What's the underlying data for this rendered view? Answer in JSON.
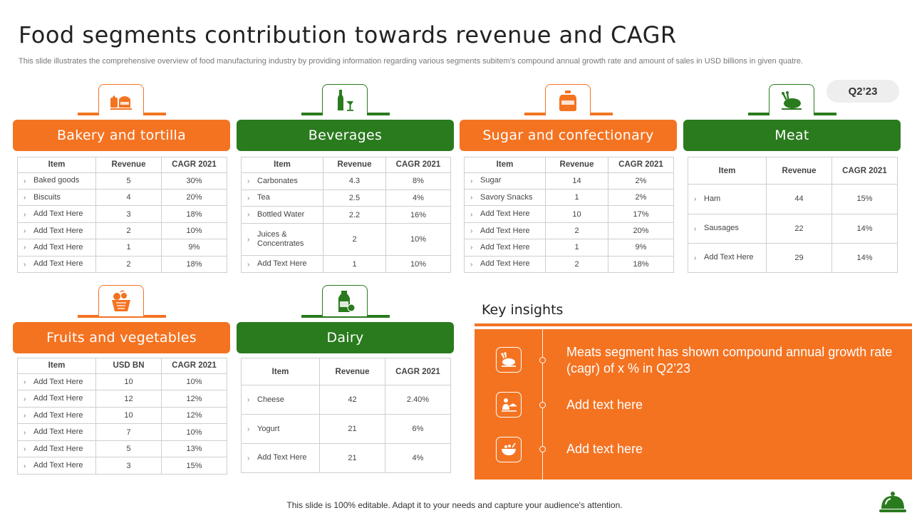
{
  "title": "Food segments contribution towards revenue and CAGR",
  "subtitle": "This slide illustrates the comprehensive overview of food manufacturing industry by providing information regarding various segments subitem’s compound annual growth rate and amount of sales in USD billions in given quatre.",
  "badge": "Q2’23",
  "segments": [
    {
      "title": "Bakery and tortilla",
      "icon": "bakery-icon",
      "theme": "orange",
      "columns": [
        "Item",
        "Revenue",
        "CAGR  2021"
      ],
      "rows": [
        [
          "Baked goods",
          "5",
          "30%"
        ],
        [
          "Biscuits",
          "4",
          "20%"
        ],
        [
          "Add Text Here",
          "3",
          "18%"
        ],
        [
          "Add Text Here",
          "2",
          "10%"
        ],
        [
          "Add Text Here",
          "1",
          "9%"
        ],
        [
          "Add Text Here",
          "2",
          "18%"
        ]
      ]
    },
    {
      "title": "Beverages",
      "icon": "beverage-bottle-icon",
      "theme": "green",
      "columns": [
        "Item",
        "Revenue",
        "CAGR  2021"
      ],
      "rows": [
        [
          "Carbonates",
          "4.3",
          "8%"
        ],
        [
          "Tea",
          "2.5",
          "4%"
        ],
        [
          "Bottled Water",
          "2.2",
          "16%"
        ],
        [
          "Juices & Concentrates",
          "2",
          "10%"
        ],
        [
          "Add Text Here",
          "1",
          "10%"
        ]
      ]
    },
    {
      "title": "Sugar and confectionary",
      "icon": "sugar-jar-icon",
      "theme": "orange",
      "columns": [
        "Item",
        "Revenue",
        "CAGR  2021"
      ],
      "rows": [
        [
          "Sugar",
          "14",
          "2%"
        ],
        [
          "Savory Snacks",
          "1",
          "2%"
        ],
        [
          "Add Text Here",
          "10",
          "17%"
        ],
        [
          "Add Text Here",
          "2",
          "20%"
        ],
        [
          "Add Text Here",
          "1",
          "9%"
        ],
        [
          "Add Text Here",
          "2",
          "18%"
        ]
      ]
    },
    {
      "title": "Meat",
      "icon": "roast-chicken-icon",
      "theme": "green",
      "columns": [
        "Item",
        "Revenue",
        "CAGR  2021"
      ],
      "rows": [
        [
          "Ham",
          "44",
          "15%"
        ],
        [
          "Sausages",
          "22",
          "14%"
        ],
        [
          "Add Text Here",
          "29",
          "14%"
        ]
      ]
    },
    {
      "title": "Fruits and vegetables",
      "icon": "fruit-basket-icon",
      "theme": "orange",
      "columns": [
        "Item",
        "USD BN",
        "CAGR  2021"
      ],
      "rows": [
        [
          "Add Text Here",
          "10",
          "10%"
        ],
        [
          "Add Text Here",
          "12",
          "12%"
        ],
        [
          "Add Text Here",
          "10",
          "12%"
        ],
        [
          "Add Text Here",
          "7",
          "10%"
        ],
        [
          "Add Text Here",
          "5",
          "13%"
        ],
        [
          "Add Text Here",
          "3",
          "15%"
        ]
      ]
    },
    {
      "title": "Dairy",
      "icon": "milk-bottle-icon",
      "theme": "green",
      "columns": [
        "Item",
        "Revenue",
        "CAGR  2021"
      ],
      "rows": [
        [
          "Cheese",
          "42",
          "2.40%"
        ],
        [
          "Yogurt",
          "21",
          "6%"
        ],
        [
          "Add Text Here",
          "21",
          "4%"
        ]
      ]
    }
  ],
  "key_insights": {
    "title": "Key insights",
    "items": [
      {
        "icon": "chicken-icon",
        "text": "Meats segment has shown compound annual growth rate (cagr) of x % in Q2’23"
      },
      {
        "icon": "chef-serving-icon",
        "text": "Add text here"
      },
      {
        "icon": "food-bowl-icon",
        "text": "Add text here"
      }
    ]
  },
  "footer": "This slide is 100% editable. Adapt it to your needs and capture your audience's attention.",
  "colors": {
    "orange": "#f47321",
    "green": "#2a7a1e"
  }
}
